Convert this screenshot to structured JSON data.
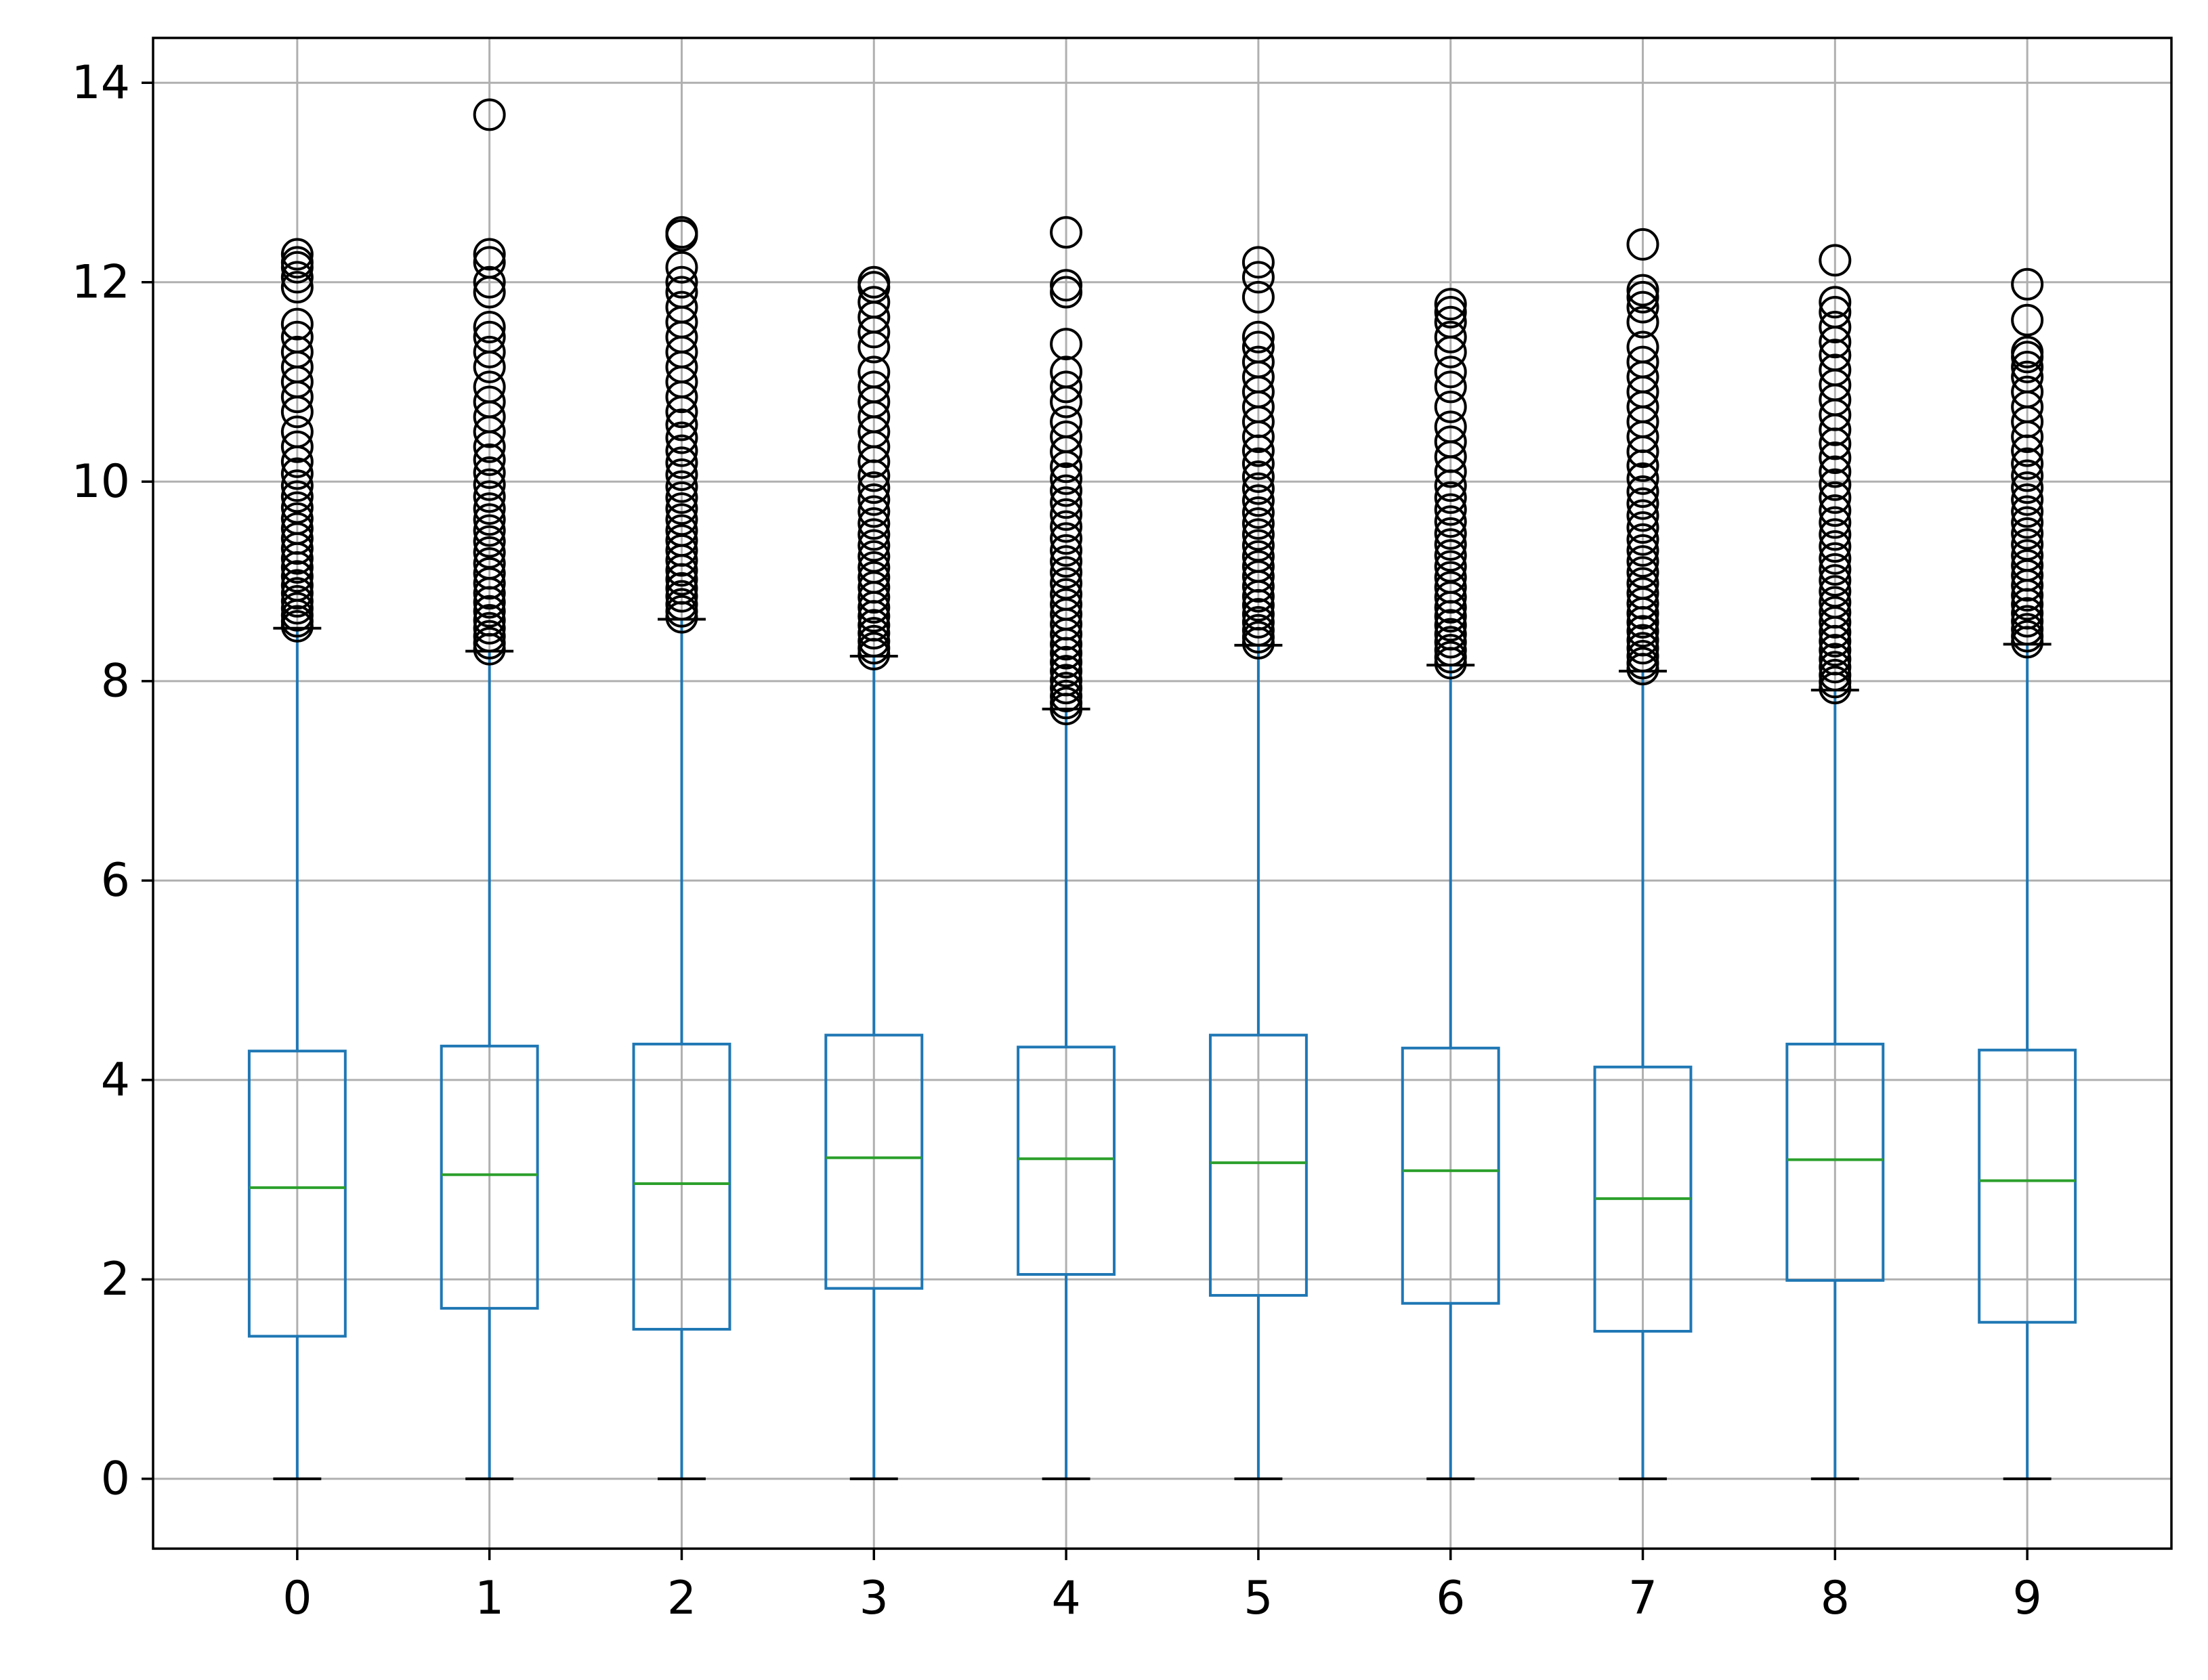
{
  "chart_data": {
    "type": "boxplot",
    "title": "",
    "xlabel": "",
    "ylabel": "",
    "categories": [
      "0",
      "1",
      "2",
      "3",
      "4",
      "5",
      "6",
      "7",
      "8",
      "9"
    ],
    "ylim": [
      -0.7,
      14.45
    ],
    "yticks": [
      0,
      2,
      4,
      6,
      8,
      10,
      12,
      14
    ],
    "grid": true,
    "colors": {
      "box": "#1f77b4",
      "median": "#2ca02c",
      "flier": "#000000",
      "grid": "#b0b0b0",
      "cap": "#000000"
    },
    "boxes": [
      {
        "label": "0",
        "whisker_low": 0,
        "q1": 1.43,
        "median": 2.92,
        "q3": 4.29,
        "whisker_high": 8.53,
        "fliers": [
          8.55,
          8.6,
          8.66,
          8.73,
          8.8,
          8.88,
          8.96,
          9.05,
          9.14,
          9.23,
          9.33,
          9.43,
          9.53,
          9.63,
          9.74,
          9.85,
          9.96,
          10.08,
          10.2,
          10.35,
          10.5,
          10.7,
          10.85,
          11.0,
          11.15,
          11.3,
          11.45,
          11.58,
          11.95,
          12.05,
          12.15,
          12.2,
          12.28
        ]
      },
      {
        "label": "1",
        "whisker_low": 0,
        "q1": 1.71,
        "median": 3.05,
        "q3": 4.34,
        "whisker_high": 8.3,
        "fliers": [
          8.32,
          8.38,
          8.45,
          8.53,
          8.61,
          8.7,
          8.79,
          8.88,
          8.98,
          9.08,
          9.18,
          9.29,
          9.4,
          9.51,
          9.62,
          9.73,
          9.85,
          9.97,
          10.09,
          10.22,
          10.35,
          10.5,
          10.65,
          10.8,
          10.95,
          11.15,
          11.3,
          11.45,
          11.55,
          11.9,
          12.0,
          12.2,
          12.28,
          13.68
        ]
      },
      {
        "label": "2",
        "whisker_low": 0,
        "q1": 1.5,
        "median": 2.96,
        "q3": 4.36,
        "whisker_high": 8.62,
        "fliers": [
          8.64,
          8.7,
          8.77,
          8.85,
          8.93,
          9.02,
          9.11,
          9.21,
          9.31,
          9.41,
          9.51,
          9.62,
          9.73,
          9.84,
          9.95,
          10.07,
          10.19,
          10.31,
          10.44,
          10.57,
          10.7,
          10.85,
          11.0,
          11.15,
          11.3,
          11.45,
          11.6,
          11.75,
          11.9,
          12.0,
          12.15,
          12.47,
          12.5
        ]
      },
      {
        "label": "3",
        "whisker_low": 0,
        "q1": 1.91,
        "median": 3.22,
        "q3": 4.45,
        "whisker_high": 8.25,
        "fliers": [
          8.27,
          8.33,
          8.4,
          8.48,
          8.56,
          8.65,
          8.74,
          8.84,
          8.94,
          9.04,
          9.14,
          9.25,
          9.36,
          9.47,
          9.58,
          9.7,
          9.82,
          9.94,
          10.06,
          10.2,
          10.35,
          10.5,
          10.65,
          10.8,
          10.95,
          11.1,
          11.35,
          11.5,
          11.65,
          11.8,
          11.95,
          12.0
        ]
      },
      {
        "label": "4",
        "whisker_low": 0,
        "q1": 2.05,
        "median": 3.21,
        "q3": 4.33,
        "whisker_high": 7.72,
        "fliers": [
          7.72,
          7.78,
          7.85,
          7.93,
          8.01,
          8.1,
          8.19,
          8.28,
          8.37,
          8.47,
          8.57,
          8.67,
          8.77,
          8.87,
          8.98,
          9.09,
          9.2,
          9.31,
          9.43,
          9.55,
          9.67,
          9.79,
          9.91,
          10.03,
          10.15,
          10.3,
          10.45,
          10.6,
          10.8,
          10.95,
          11.1,
          11.38,
          11.9,
          11.97,
          12.5
        ]
      },
      {
        "label": "5",
        "whisker_low": 0,
        "q1": 1.84,
        "median": 3.17,
        "q3": 4.45,
        "whisker_high": 8.36,
        "fliers": [
          8.38,
          8.44,
          8.51,
          8.59,
          8.67,
          8.76,
          8.85,
          8.95,
          9.05,
          9.15,
          9.25,
          9.36,
          9.47,
          9.58,
          9.69,
          9.81,
          9.93,
          10.05,
          10.18,
          10.31,
          10.45,
          10.6,
          10.75,
          10.9,
          11.05,
          11.2,
          11.35,
          11.45,
          11.85,
          12.05,
          12.2
        ]
      },
      {
        "label": "6",
        "whisker_low": 0,
        "q1": 1.76,
        "median": 3.09,
        "q3": 4.32,
        "whisker_high": 8.16,
        "fliers": [
          8.18,
          8.24,
          8.31,
          8.39,
          8.47,
          8.56,
          8.65,
          8.74,
          8.84,
          8.94,
          9.04,
          9.15,
          9.26,
          9.37,
          9.48,
          9.6,
          9.72,
          9.84,
          9.96,
          10.1,
          10.25,
          10.4,
          10.55,
          10.75,
          10.95,
          11.1,
          11.3,
          11.45,
          11.6,
          11.7,
          11.78
        ]
      },
      {
        "label": "7",
        "whisker_low": 0,
        "q1": 1.48,
        "median": 2.81,
        "q3": 4.13,
        "whisker_high": 8.1,
        "fliers": [
          8.12,
          8.18,
          8.25,
          8.33,
          8.41,
          8.5,
          8.59,
          8.68,
          8.78,
          8.88,
          8.98,
          9.09,
          9.2,
          9.31,
          9.42,
          9.54,
          9.66,
          9.78,
          9.9,
          10.03,
          10.16,
          10.3,
          10.45,
          10.6,
          10.75,
          10.9,
          11.05,
          11.2,
          11.35,
          11.6,
          11.75,
          11.85,
          11.92,
          12.38
        ]
      },
      {
        "label": "8",
        "whisker_low": 0,
        "q1": 1.99,
        "median": 3.2,
        "q3": 4.36,
        "whisker_high": 7.91,
        "fliers": [
          7.93,
          7.99,
          8.06,
          8.14,
          8.22,
          8.31,
          8.4,
          8.49,
          8.59,
          8.69,
          8.79,
          8.9,
          9.01,
          9.12,
          9.23,
          9.35,
          9.47,
          9.59,
          9.71,
          9.84,
          9.97,
          10.1,
          10.24,
          10.38,
          10.52,
          10.67,
          10.82,
          10.97,
          11.12,
          11.27,
          11.4,
          11.55,
          11.7,
          11.8,
          12.22
        ]
      },
      {
        "label": "9",
        "whisker_low": 0,
        "q1": 1.57,
        "median": 2.99,
        "q3": 4.3,
        "whisker_high": 8.37,
        "fliers": [
          8.39,
          8.45,
          8.52,
          8.6,
          8.68,
          8.77,
          8.86,
          8.96,
          9.06,
          9.16,
          9.26,
          9.37,
          9.48,
          9.59,
          9.7,
          9.82,
          9.94,
          10.06,
          10.18,
          10.31,
          10.45,
          10.6,
          10.75,
          10.9,
          11.05,
          11.15,
          11.25,
          11.3,
          11.62,
          11.98
        ]
      }
    ]
  }
}
